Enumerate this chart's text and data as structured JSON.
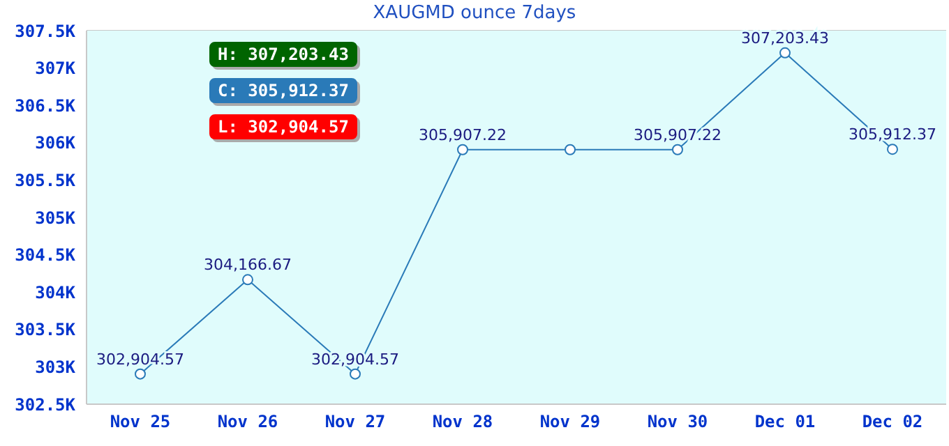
{
  "chart_data": {
    "type": "line",
    "title": "XAUGMD ounce  7days",
    "categories": [
      "Nov 25",
      "Nov 26",
      "Nov 27",
      "Nov 28",
      "Nov 29",
      "Nov 30",
      "Dec 01",
      "Dec 02"
    ],
    "series": [
      {
        "color": "#2a7ab8",
        "values": [
          302904.57,
          304166.67,
          302904.57,
          305907.22,
          305907,
          305907.22,
          307203.43,
          305912.37
        ],
        "value_labels": [
          "302,904.57",
          "304,166.67",
          "302,904.57",
          "305,907.22",
          null,
          "305,907.22",
          "307,203.43",
          "305,912.37"
        ]
      }
    ],
    "ylim": [
      302500,
      307500
    ],
    "yticks": [
      {
        "value": 302500,
        "label": "302.5K"
      },
      {
        "value": 303000,
        "label": "303K"
      },
      {
        "value": 303500,
        "label": "303.5K"
      },
      {
        "value": 304000,
        "label": "304K"
      },
      {
        "value": 304500,
        "label": "304.5K"
      },
      {
        "value": 305000,
        "label": "305K"
      },
      {
        "value": 305500,
        "label": "305.5K"
      },
      {
        "value": 306000,
        "label": "306K"
      },
      {
        "value": 306500,
        "label": "306.5K"
      },
      {
        "value": 307000,
        "label": "307K"
      },
      {
        "value": 307500,
        "label": "307.5K"
      }
    ],
    "annotations": [
      "H: 307,203.43",
      "C: 305,912.37",
      "L: 302,904.57"
    ],
    "grid": "y",
    "marker": "circle",
    "line_style": "solid",
    "legend": false
  }
}
